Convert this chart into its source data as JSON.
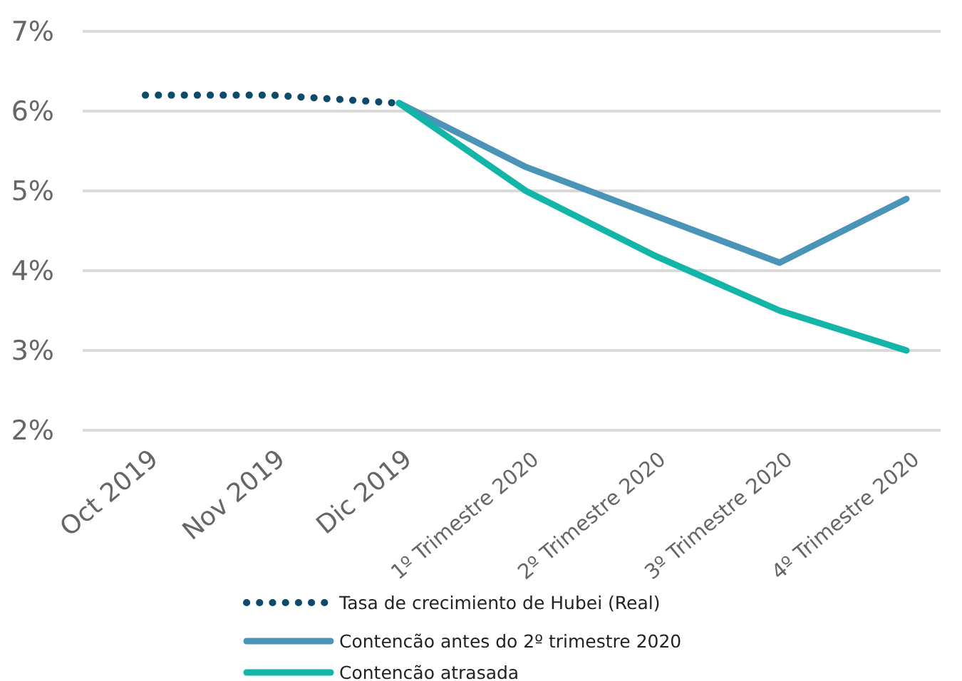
{
  "chart_data": {
    "type": "line",
    "categories": [
      "Oct 2019",
      "Nov 2019",
      "Dic 2019",
      "1º Trimestre 2020",
      "2º Trimestre 2020",
      "3º Trimestre 2020",
      "4º Trimestre 2020"
    ],
    "series": [
      {
        "name": "Tasa de crecimiento de Hubei (Real)",
        "color": "#0d4a6b",
        "line_style": "dotted",
        "values": [
          6.2,
          6.2,
          6.1,
          null,
          null,
          null,
          null
        ]
      },
      {
        "name": "Contencão antes do 2º trimestre 2020",
        "color": "#4a94b8",
        "line_style": "solid",
        "values": [
          null,
          null,
          6.1,
          5.3,
          4.7,
          4.1,
          4.9
        ]
      },
      {
        "name": "Contencão atrasada",
        "color": "#13b5a8",
        "line_style": "solid",
        "values": [
          null,
          null,
          6.1,
          5.0,
          4.2,
          3.5,
          3.0
        ]
      }
    ],
    "ylim": [
      2,
      7
    ],
    "yticks": [
      {
        "value": 2,
        "label": "2%"
      },
      {
        "value": 3,
        "label": "3%"
      },
      {
        "value": 4,
        "label": "4%"
      },
      {
        "value": 5,
        "label": "5%"
      },
      {
        "value": 6,
        "label": "6%"
      },
      {
        "value": 7,
        "label": "7%"
      }
    ],
    "grid": "y",
    "legend": "bottom",
    "marker": "none"
  }
}
